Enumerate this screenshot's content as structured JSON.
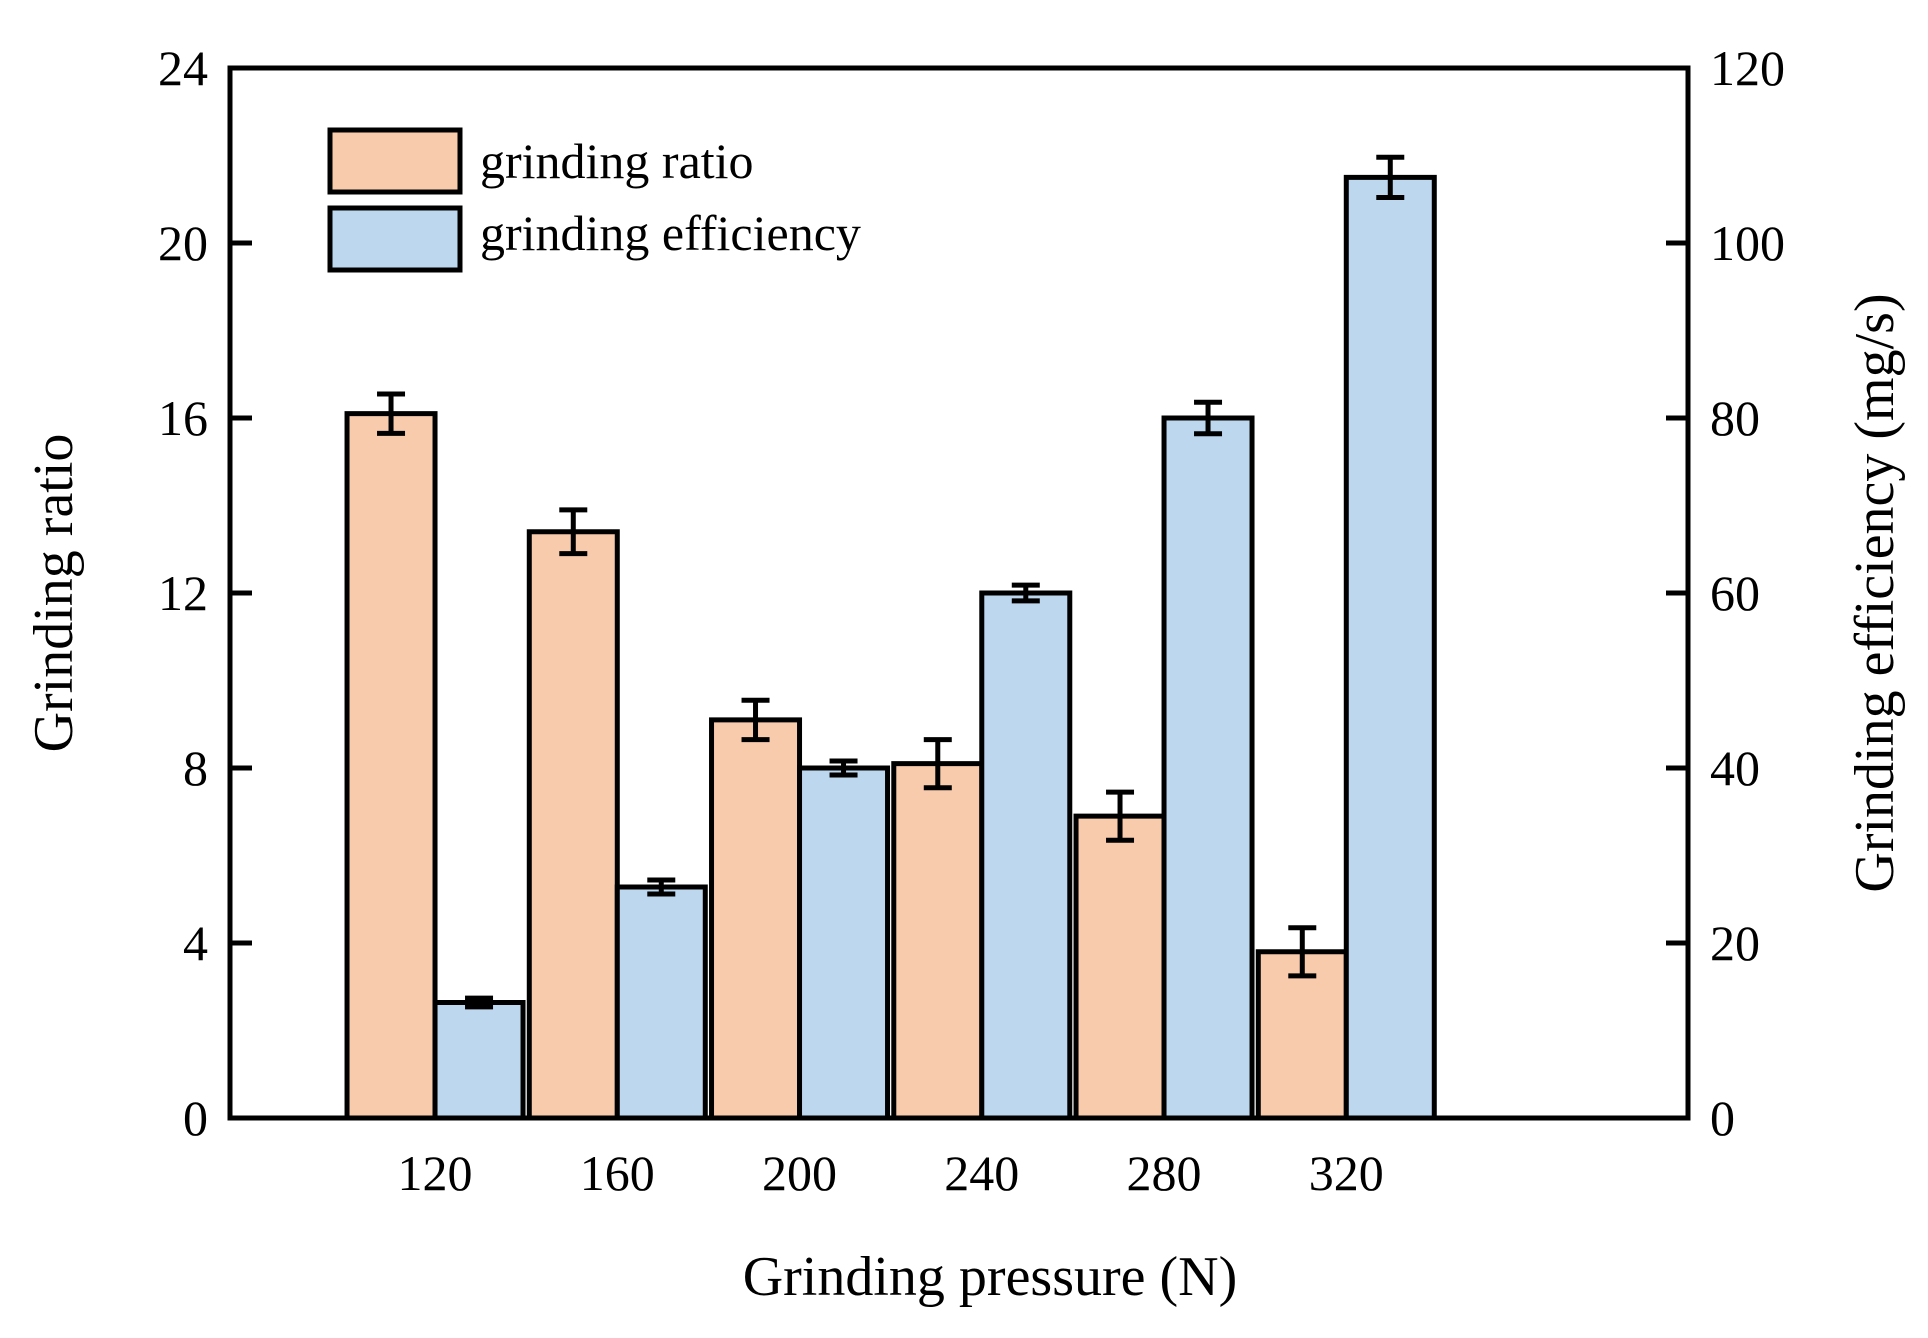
{
  "chart_data": {
    "type": "bar",
    "xlabel": "Grinding pressure (N)",
    "categories": [
      "120",
      "160",
      "200",
      "240",
      "280",
      "320"
    ],
    "series": [
      {
        "name": "grinding ratio",
        "axis": "left",
        "color": "#F8CBAD",
        "values": [
          16.1,
          13.4,
          9.1,
          8.1,
          6.9,
          3.8
        ],
        "errors": [
          0.45,
          0.5,
          0.45,
          0.55,
          0.55,
          0.55
        ]
      },
      {
        "name": "grinding efficiency",
        "axis": "right",
        "color": "#BDD7EE",
        "values": [
          13.2,
          26.4,
          40.0,
          60.0,
          80.0,
          107.5
        ],
        "errors": [
          0.5,
          0.8,
          0.8,
          0.9,
          1.8,
          2.3
        ]
      }
    ],
    "left_axis": {
      "label": "Grinding ratio",
      "range": [
        0,
        24
      ],
      "ticks": [
        "0",
        "4",
        "8",
        "12",
        "16",
        "20",
        "24"
      ]
    },
    "right_axis": {
      "label": "Grinding efficiency (mg/s)",
      "range": [
        0,
        120
      ],
      "ticks": [
        "0",
        "20",
        "40",
        "60",
        "80",
        "100",
        "120"
      ]
    },
    "legend": {
      "position": "top-left"
    },
    "grid": false
  }
}
